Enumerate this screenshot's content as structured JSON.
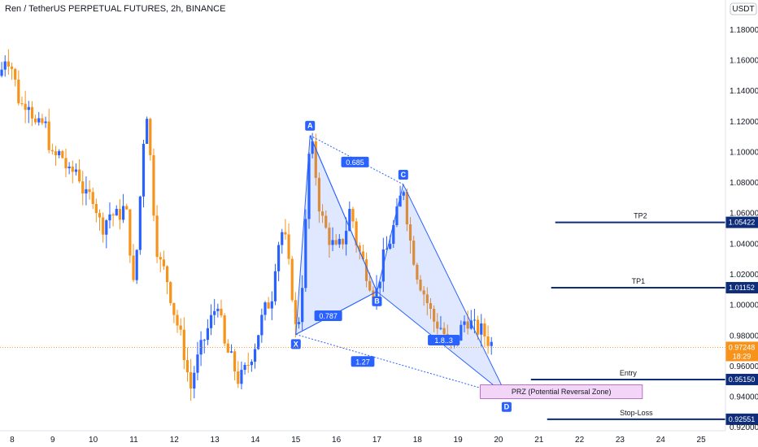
{
  "header": {
    "title": "Ren / TetherUS PERPETUAL FUTURES, 2h, BINANCE"
  },
  "currency_badge": "USDT",
  "colors": {
    "up": "#2962ff",
    "down": "#f7931a",
    "pattern": "#2962ff",
    "pattern_fill": "#2962ff",
    "level_line": "#0d2d7a",
    "prz_fill": "#f3d6f7",
    "prz_stroke": "#b04fc0",
    "current_badge": "#f7931a",
    "axis_text": "#131722"
  },
  "chart_data": {
    "type": "candlestick",
    "title": "Ren / TetherUS PERPETUAL FUTURES, 2h, BINANCE",
    "ylim": [
      0.918,
      1.19
    ],
    "xlim": [
      7.7,
      25.6
    ],
    "y_ticks": [
      "1.18000",
      "1.16000",
      "1.14000",
      "1.12000",
      "1.10000",
      "1.08000",
      "1.06000",
      "1.04000",
      "1.02000",
      "1.00000",
      "0.98000",
      "0.96000",
      "0.94000",
      "0.92000"
    ],
    "x_ticks": [
      {
        "label": "8",
        "day": 8
      },
      {
        "label": "9",
        "day": 9
      },
      {
        "label": "10",
        "day": 10
      },
      {
        "label": "11",
        "day": 11
      },
      {
        "label": "12",
        "day": 12
      },
      {
        "label": "13",
        "day": 13
      },
      {
        "label": "14",
        "day": 14
      },
      {
        "label": "15",
        "day": 15
      },
      {
        "label": "16",
        "day": 16
      },
      {
        "label": "17",
        "day": 17
      },
      {
        "label": "18",
        "day": 18
      },
      {
        "label": "19",
        "day": 19
      },
      {
        "label": "20",
        "day": 20
      },
      {
        "label": "21",
        "day": 21
      },
      {
        "label": "22",
        "day": 22
      },
      {
        "label": "23",
        "day": 23
      },
      {
        "label": "24",
        "day": 24
      },
      {
        "label": "25",
        "day": 25
      }
    ],
    "price_path": [
      [
        7.7,
        1.15
      ],
      [
        7.85,
        1.165
      ],
      [
        8.0,
        1.155
      ],
      [
        8.2,
        1.13
      ],
      [
        8.4,
        1.135
      ],
      [
        8.6,
        1.115
      ],
      [
        8.8,
        1.12
      ],
      [
        9.0,
        1.095
      ],
      [
        9.2,
        1.1
      ],
      [
        9.4,
        1.085
      ],
      [
        9.6,
        1.09
      ],
      [
        9.8,
        1.07
      ],
      [
        10.0,
        1.072
      ],
      [
        10.2,
        1.05
      ],
      [
        10.4,
        1.06
      ],
      [
        10.6,
        1.058
      ],
      [
        10.8,
        1.065
      ],
      [
        10.9,
        1.04
      ],
      [
        11.0,
        1.01
      ],
      [
        11.1,
        1.045
      ],
      [
        11.2,
        1.09
      ],
      [
        11.3,
        1.135
      ],
      [
        11.4,
        1.1
      ],
      [
        11.5,
        1.06
      ],
      [
        11.6,
        1.03
      ],
      [
        11.8,
        1.02
      ],
      [
        12.0,
        0.995
      ],
      [
        12.2,
        0.975
      ],
      [
        12.4,
        0.945
      ],
      [
        12.5,
        0.958
      ],
      [
        12.7,
        0.975
      ],
      [
        12.9,
        0.99
      ],
      [
        13.1,
        1.005
      ],
      [
        13.2,
        0.975
      ],
      [
        13.4,
        0.965
      ],
      [
        13.6,
        0.95
      ],
      [
        13.8,
        0.96
      ],
      [
        14.0,
        0.975
      ],
      [
        14.2,
        0.995
      ],
      [
        14.4,
        1.005
      ],
      [
        14.5,
        1.03
      ],
      [
        14.6,
        1.045
      ],
      [
        14.7,
        1.05
      ],
      [
        14.8,
        1.03
      ],
      [
        14.95,
        1.0
      ],
      [
        15.0,
        0.982
      ],
      [
        15.1,
        0.995
      ],
      [
        15.2,
        1.03
      ],
      [
        15.3,
        1.085
      ],
      [
        15.35,
        1.111
      ],
      [
        15.45,
        1.095
      ],
      [
        15.6,
        1.06
      ],
      [
        15.8,
        1.045
      ],
      [
        16.0,
        1.035
      ],
      [
        16.2,
        1.045
      ],
      [
        16.35,
        1.065
      ],
      [
        16.5,
        1.04
      ],
      [
        16.7,
        1.025
      ],
      [
        16.9,
        1.01
      ],
      [
        17.0,
        1.009
      ],
      [
        17.15,
        1.03
      ],
      [
        17.3,
        1.04
      ],
      [
        17.5,
        1.06
      ],
      [
        17.65,
        1.079
      ],
      [
        17.8,
        1.045
      ],
      [
        18.0,
        1.02
      ],
      [
        18.2,
        1.005
      ],
      [
        18.4,
        0.99
      ],
      [
        18.6,
        0.985
      ],
      [
        18.8,
        0.972
      ],
      [
        18.9,
        0.975
      ],
      [
        19.0,
        0.98
      ],
      [
        19.2,
        0.992
      ],
      [
        19.4,
        0.985
      ],
      [
        19.6,
        0.983
      ],
      [
        19.8,
        0.975
      ]
    ],
    "pattern": {
      "points": [
        {
          "name": "X",
          "x": 15.0,
          "y": 0.981
        },
        {
          "name": "A",
          "x": 15.35,
          "y": 1.111
        },
        {
          "name": "B",
          "x": 17.0,
          "y": 1.009
        },
        {
          "name": "C",
          "x": 17.65,
          "y": 1.079
        },
        {
          "name": "D",
          "x": 20.2,
          "y": 0.941
        }
      ],
      "ratios": [
        {
          "label": "0.685",
          "between": [
            "A",
            "B"
          ]
        },
        {
          "label": "0.787",
          "between": [
            "X",
            "B"
          ]
        },
        {
          "label": "1.8..3",
          "between": [
            "B",
            "D"
          ]
        },
        {
          "label": "1.27",
          "between": [
            "X",
            "D"
          ]
        }
      ]
    },
    "levels": [
      {
        "name": "TP2",
        "value": 1.05422,
        "badge": "1.05422",
        "x_start": 21.4
      },
      {
        "name": "TP1",
        "value": 1.01152,
        "badge": "1.01152",
        "x_start": 21.3
      },
      {
        "name": "Entry",
        "value": 0.9515,
        "badge": "0.95150",
        "x_start": 20.8
      },
      {
        "name": "Stop-Loss",
        "value": 0.92551,
        "badge": "0.92551",
        "x_start": 21.2
      }
    ],
    "prz": {
      "label": "PRZ (Potential Reversal Zone)",
      "y_top": 0.948,
      "y_bottom": 0.939,
      "x_start": 19.55,
      "x_end": 23.55
    },
    "current_price": {
      "value": 0.97248,
      "badge": "0.97248",
      "countdown": "18:29"
    },
    "grid": false,
    "legend": "none"
  }
}
